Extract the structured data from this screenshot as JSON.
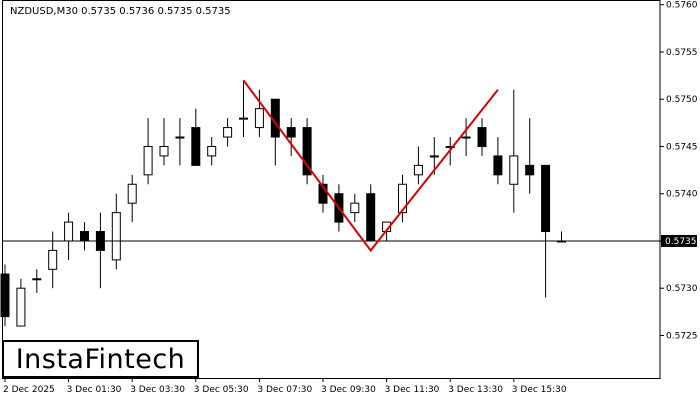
{
  "header": {
    "symbol_info": "NZDUSD,M30  0.5735 0.5736 0.5735 0.5735"
  },
  "logo": {
    "text": "InstaFintech"
  },
  "colors": {
    "pattern": "#dd0000",
    "bull_body": "#ffffff",
    "bear_body": "#000000",
    "axis": "#000000",
    "price_box": "#000000"
  },
  "chart_data": {
    "type": "candlestick",
    "symbol": "NZDUSD",
    "timeframe": "M30",
    "ylim": [
      0.57205,
      0.57605
    ],
    "y_ticks": [
      "0.5760",
      "0.5755",
      "0.5750",
      "0.5745",
      "0.5740",
      "0.5735",
      "0.5730",
      "0.5725"
    ],
    "x_ticks": [
      {
        "label": "2 Dec 2025",
        "index": 0
      },
      {
        "label": "3 Dec 01:30",
        "index": 4
      },
      {
        "label": "3 Dec 03:30",
        "index": 8
      },
      {
        "label": "3 Dec 05:30",
        "index": 12
      },
      {
        "label": "3 Dec 07:30",
        "index": 16
      },
      {
        "label": "3 Dec 09:30",
        "index": 20
      },
      {
        "label": "3 Dec 11:30",
        "index": 24
      },
      {
        "label": "3 Dec 13:30",
        "index": 28
      },
      {
        "label": "3 Dec 15:30",
        "index": 32
      }
    ],
    "current_price": "0.5735",
    "current_price_value": 0.5735,
    "candles": [
      {
        "o": 0.57315,
        "h": 0.57325,
        "l": 0.5726,
        "c": 0.5727
      },
      {
        "o": 0.5726,
        "h": 0.5731,
        "l": 0.5726,
        "c": 0.573
      },
      {
        "o": 0.5731,
        "h": 0.5732,
        "l": 0.57295,
        "c": 0.5731
      },
      {
        "o": 0.5732,
        "h": 0.5736,
        "l": 0.573,
        "c": 0.5734
      },
      {
        "o": 0.5735,
        "h": 0.5738,
        "l": 0.5733,
        "c": 0.5737
      },
      {
        "o": 0.5736,
        "h": 0.5737,
        "l": 0.5734,
        "c": 0.5735
      },
      {
        "o": 0.5736,
        "h": 0.5738,
        "l": 0.573,
        "c": 0.5734
      },
      {
        "o": 0.5733,
        "h": 0.574,
        "l": 0.5732,
        "c": 0.5738
      },
      {
        "o": 0.5739,
        "h": 0.5742,
        "l": 0.5737,
        "c": 0.5741
      },
      {
        "o": 0.5742,
        "h": 0.5748,
        "l": 0.5741,
        "c": 0.5745
      },
      {
        "o": 0.5744,
        "h": 0.5748,
        "l": 0.5743,
        "c": 0.5745
      },
      {
        "o": 0.5746,
        "h": 0.5748,
        "l": 0.5743,
        "c": 0.5746
      },
      {
        "o": 0.5747,
        "h": 0.5749,
        "l": 0.5743,
        "c": 0.5743
      },
      {
        "o": 0.5744,
        "h": 0.5746,
        "l": 0.5743,
        "c": 0.5745
      },
      {
        "o": 0.5746,
        "h": 0.5748,
        "l": 0.5745,
        "c": 0.5747
      },
      {
        "o": 0.5748,
        "h": 0.5752,
        "l": 0.5746,
        "c": 0.5748
      },
      {
        "o": 0.5747,
        "h": 0.5751,
        "l": 0.5746,
        "c": 0.5749
      },
      {
        "o": 0.575,
        "h": 0.575,
        "l": 0.5743,
        "c": 0.5746
      },
      {
        "o": 0.5747,
        "h": 0.5748,
        "l": 0.5744,
        "c": 0.5746
      },
      {
        "o": 0.5747,
        "h": 0.5748,
        "l": 0.5741,
        "c": 0.5742
      },
      {
        "o": 0.5741,
        "h": 0.5742,
        "l": 0.5738,
        "c": 0.5739
      },
      {
        "o": 0.574,
        "h": 0.5741,
        "l": 0.5736,
        "c": 0.5737
      },
      {
        "o": 0.5738,
        "h": 0.574,
        "l": 0.5737,
        "c": 0.5739
      },
      {
        "o": 0.574,
        "h": 0.5741,
        "l": 0.5735,
        "c": 0.5735
      },
      {
        "o": 0.5736,
        "h": 0.5737,
        "l": 0.5735,
        "c": 0.5737
      },
      {
        "o": 0.5738,
        "h": 0.5742,
        "l": 0.5737,
        "c": 0.5741
      },
      {
        "o": 0.5742,
        "h": 0.5745,
        "l": 0.5741,
        "c": 0.5743
      },
      {
        "o": 0.5744,
        "h": 0.5746,
        "l": 0.5742,
        "c": 0.5744
      },
      {
        "o": 0.5745,
        "h": 0.5746,
        "l": 0.5743,
        "c": 0.5745
      },
      {
        "o": 0.5746,
        "h": 0.5748,
        "l": 0.5744,
        "c": 0.5746
      },
      {
        "o": 0.5747,
        "h": 0.5748,
        "l": 0.5744,
        "c": 0.5745
      },
      {
        "o": 0.5744,
        "h": 0.5746,
        "l": 0.5741,
        "c": 0.5742
      },
      {
        "o": 0.5741,
        "h": 0.5751,
        "l": 0.5738,
        "c": 0.5744
      },
      {
        "o": 0.5743,
        "h": 0.5748,
        "l": 0.574,
        "c": 0.5742
      },
      {
        "o": 0.5743,
        "h": 0.5743,
        "l": 0.5729,
        "c": 0.5736
      },
      {
        "o": 0.5735,
        "h": 0.5736,
        "l": 0.5735,
        "c": 0.5735
      }
    ],
    "pattern_line": [
      {
        "index": 15,
        "price": 0.5752
      },
      {
        "index": 23,
        "price": 0.5734
      },
      {
        "index": 31,
        "price": 0.5751
      }
    ]
  }
}
